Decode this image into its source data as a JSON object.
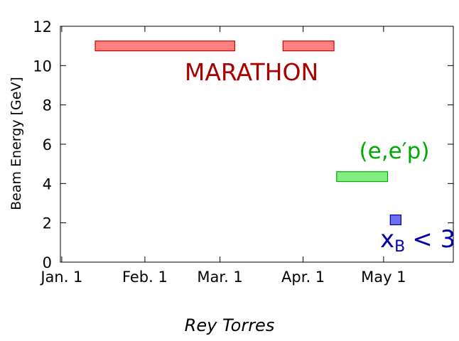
{
  "chart_data": {
    "type": "bar",
    "orientation": "horizontal-ranges",
    "title": "",
    "xlabel": "",
    "ylabel": "Beam Energy [GeV]",
    "xlim": [
      -0.5,
      146
    ],
    "ylim": [
      0,
      12
    ],
    "grid": false,
    "x_ticks": [
      {
        "label": "Jan. 1",
        "value": 0
      },
      {
        "label": "Feb. 1",
        "value": 31
      },
      {
        "label": "Mar. 1",
        "value": 59
      },
      {
        "label": "Apr. 1",
        "value": 90
      },
      {
        "label": "May 1",
        "value": 120
      }
    ],
    "y_ticks": [
      {
        "label": "0",
        "value": 0
      },
      {
        "label": "2",
        "value": 2
      },
      {
        "label": "4",
        "value": 4
      },
      {
        "label": "6",
        "value": 6
      },
      {
        "label": "8",
        "value": 8
      },
      {
        "label": "10",
        "value": 10
      },
      {
        "label": "12",
        "value": 12
      }
    ],
    "series": [
      {
        "name": "MARATHON",
        "color": "#cc0000",
        "fill": "#ff8080",
        "label_color": "#aa0000",
        "bars": [
          {
            "start": 12.5,
            "end": 64.5,
            "y_low": 10.75,
            "y_high": 11.25
          },
          {
            "start": 82.5,
            "end": 101.5,
            "y_low": 10.75,
            "y_high": 11.25
          }
        ]
      },
      {
        "name": "(e,e′p)",
        "color": "#00aa00",
        "fill": "#80ee80",
        "label_color": "#00aa00",
        "bars": [
          {
            "start": 102.5,
            "end": 121.5,
            "y_low": 4.1,
            "y_high": 4.6
          }
        ]
      },
      {
        "name": "xB < 3",
        "color": "#0000aa",
        "fill": "#7070ee",
        "label_color": "#0000aa",
        "bars": [
          {
            "start": 122.5,
            "end": 126.5,
            "y_low": 1.9,
            "y_high": 2.4
          }
        ]
      }
    ]
  },
  "labels": {
    "marathon": "MARATHON",
    "eep_text": "(e,e′p)",
    "xb_main": "x",
    "xb_sub": "B",
    "xb_rest": "< 3"
  },
  "credit": "Rey Torres"
}
